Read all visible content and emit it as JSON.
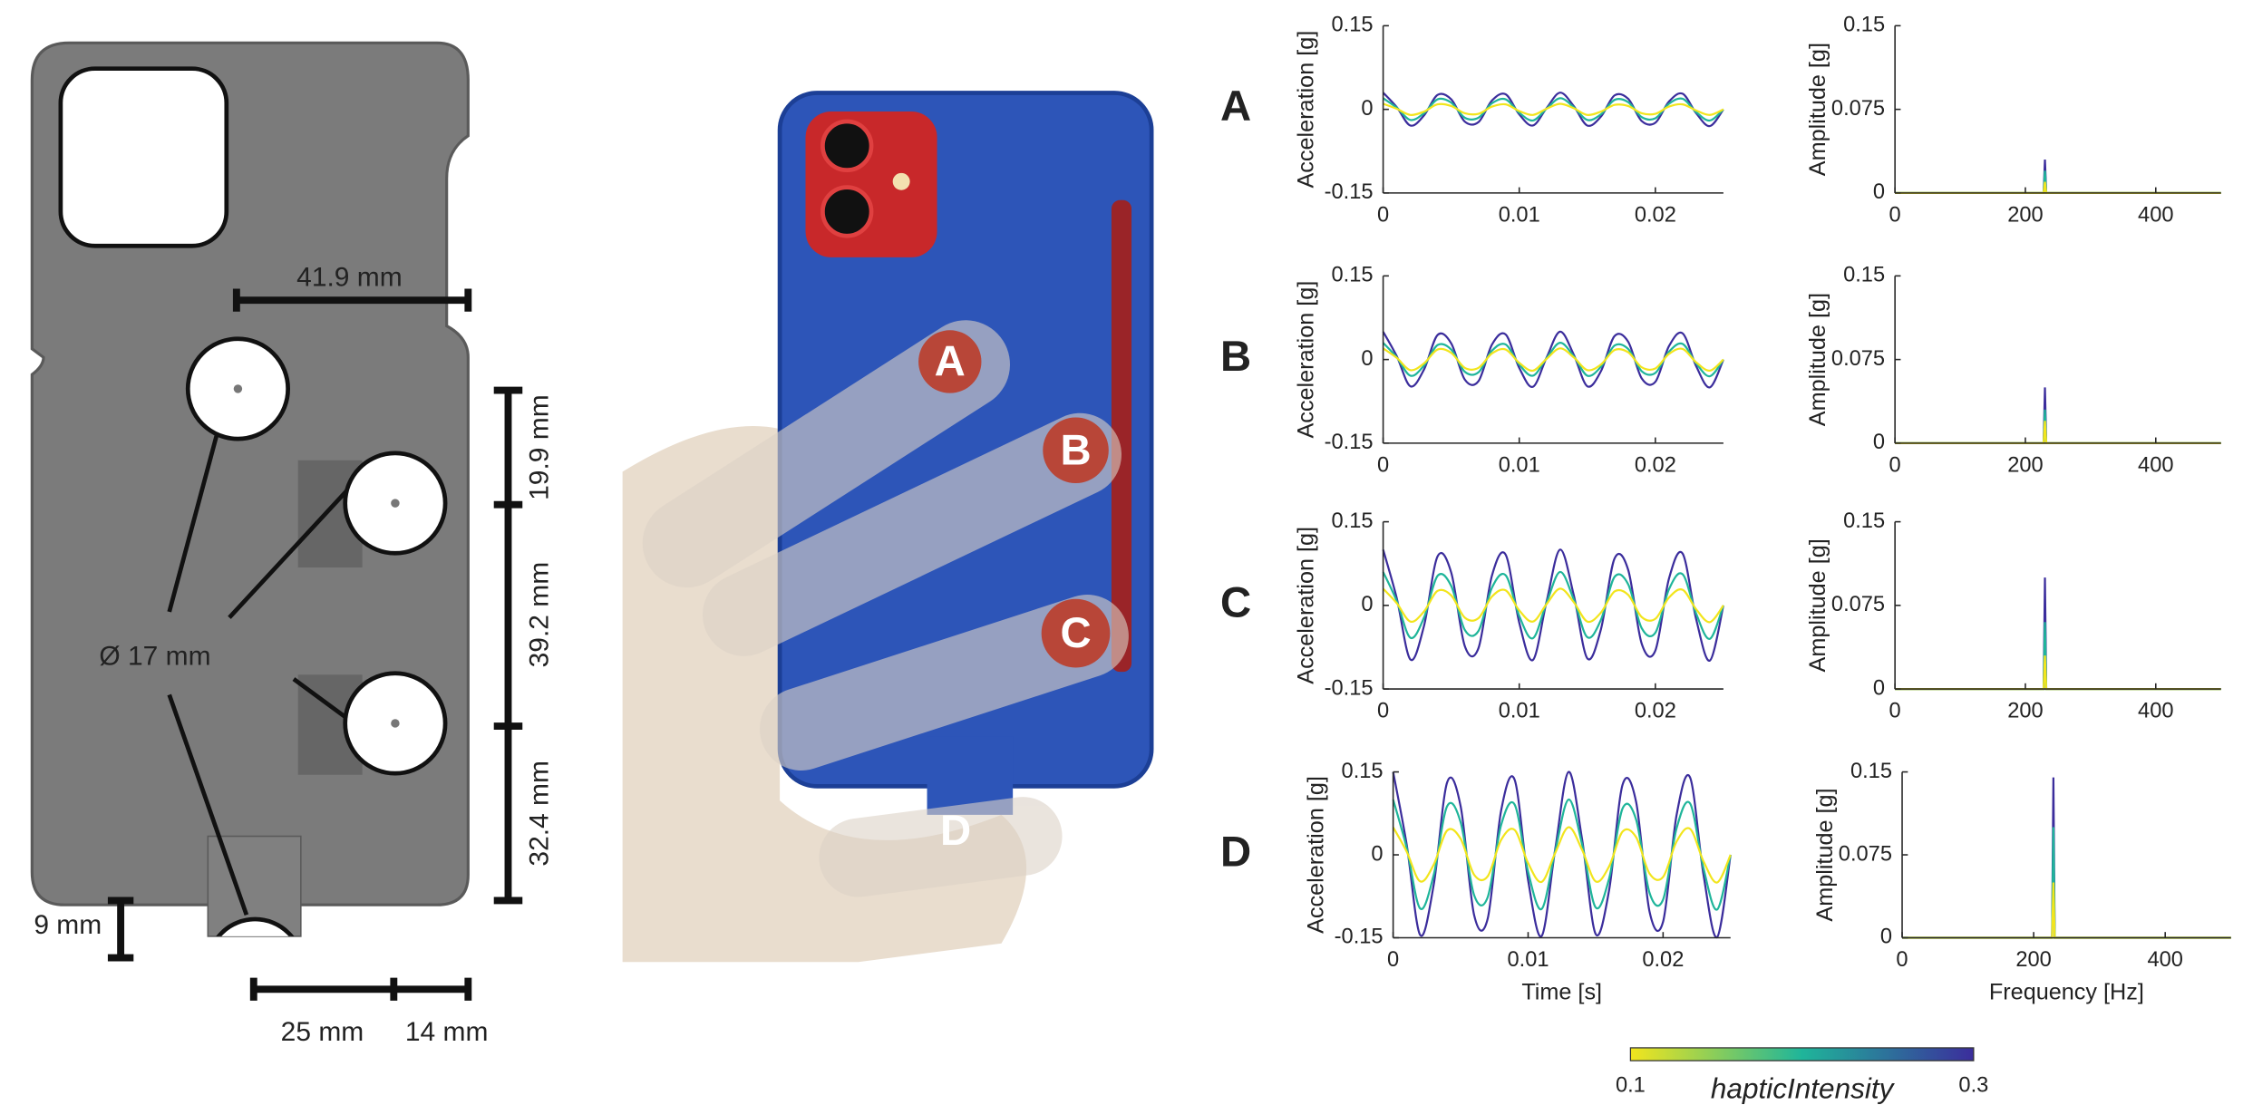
{
  "diagram": {
    "dimensions": [
      "41.9 mm",
      "19.9 mm",
      "39.2 mm",
      "32.4 mm",
      "9 mm",
      "25 mm",
      "14 mm"
    ],
    "diameter": "Ø 17 mm"
  },
  "photo": {
    "labels": [
      "A",
      "B",
      "C",
      "D"
    ]
  },
  "colorbar": {
    "label": "hapticIntensity",
    "min": 0.1,
    "max": 0.3,
    "colors": [
      "#f2e51d",
      "#1fb59a",
      "#3b2d9c"
    ]
  },
  "chart_data": [
    {
      "type": "line",
      "panel": "A",
      "ylabel": "Acceleration [g]",
      "x": [
        0,
        0.001,
        0.002,
        0.003,
        0.004,
        0.005,
        0.006,
        0.007,
        0.008,
        0.009,
        0.01,
        0.011,
        0.012,
        0.013,
        0.014,
        0.015,
        0.016,
        0.017,
        0.018,
        0.019,
        0.02,
        0.021,
        0.022,
        0.023,
        0.024,
        0.025
      ],
      "xlim": [
        0,
        0.025
      ],
      "xticks": [
        0,
        0.01,
        0.02
      ],
      "ylim": [
        -0.15,
        0.15
      ],
      "yticks": [
        -0.15,
        0,
        0.15
      ],
      "series": [
        {
          "color": "#f2e51d",
          "values": [
            0.01,
            0.001,
            -0.01,
            -0.004,
            0.009,
            0.006,
            -0.007,
            -0.008,
            0.005,
            0.009,
            -0.003,
            -0.01,
            0.001,
            0.01,
            0.002,
            -0.01,
            -0.004,
            0.008,
            0.006,
            -0.007,
            -0.008,
            0.005,
            0.009,
            -0.002,
            -0.01,
            0
          ]
        },
        {
          "color": "#1fb59a",
          "values": [
            0.02,
            0.003,
            -0.019,
            -0.007,
            0.018,
            0.012,
            -0.015,
            -0.015,
            0.011,
            0.018,
            -0.006,
            -0.02,
            0.001,
            0.02,
            0.004,
            -0.019,
            -0.009,
            0.017,
            0.013,
            -0.014,
            -0.016,
            0.01,
            0.019,
            -0.005,
            -0.02,
            0
          ]
        },
        {
          "color": "#3b2d9c",
          "values": [
            0.03,
            0.004,
            -0.029,
            -0.011,
            0.026,
            0.018,
            -0.022,
            -0.023,
            0.016,
            0.027,
            -0.009,
            -0.029,
            0.002,
            0.03,
            0.006,
            -0.029,
            -0.013,
            0.025,
            0.019,
            -0.021,
            -0.024,
            0.014,
            0.028,
            -0.007,
            -0.03,
            0
          ]
        }
      ]
    },
    {
      "type": "line",
      "ylabel": "Amplitude [g]",
      "x": [
        0,
        228,
        230,
        232,
        500
      ],
      "xlim": [
        0,
        500
      ],
      "xticks": [
        0,
        200,
        400
      ],
      "ylim": [
        0,
        0.15
      ],
      "yticks": [
        0,
        0.075,
        0.15
      ],
      "series": [
        {
          "color": "#f2e51d",
          "values": [
            0,
            0,
            0.01,
            0,
            0
          ]
        },
        {
          "color": "#1fb59a",
          "values": [
            0,
            0,
            0.02,
            0,
            0
          ]
        },
        {
          "color": "#3b2d9c",
          "values": [
            0,
            0,
            0.03,
            0,
            0
          ]
        }
      ]
    },
    {
      "type": "line",
      "panel": "B",
      "ylabel": "Acceleration [g]",
      "x": [
        0,
        0.001,
        0.002,
        0.003,
        0.004,
        0.005,
        0.006,
        0.007,
        0.008,
        0.009,
        0.01,
        0.011,
        0.012,
        0.013,
        0.014,
        0.015,
        0.016,
        0.017,
        0.018,
        0.019,
        0.02,
        0.021,
        0.022,
        0.023,
        0.024,
        0.025
      ],
      "xlim": [
        0,
        0.025
      ],
      "xticks": [
        0,
        0.01,
        0.02
      ],
      "ylim": [
        -0.15,
        0.15
      ],
      "yticks": [
        -0.15,
        0,
        0.15
      ],
      "series": [
        {
          "color": "#f2e51d",
          "values": [
            0.02,
            0.003,
            -0.019,
            -0.007,
            0.018,
            0.012,
            -0.015,
            -0.015,
            0.011,
            0.018,
            -0.006,
            -0.02,
            0.001,
            0.02,
            0.004,
            -0.019,
            -0.009,
            0.017,
            0.013,
            -0.014,
            -0.016,
            0.01,
            0.019,
            -0.005,
            -0.02,
            0
          ]
        },
        {
          "color": "#1fb59a",
          "values": [
            0.03,
            0.004,
            -0.029,
            -0.011,
            0.026,
            0.018,
            -0.022,
            -0.023,
            0.016,
            0.027,
            -0.009,
            -0.029,
            0.002,
            0.03,
            0.006,
            -0.029,
            -0.013,
            0.025,
            0.019,
            -0.021,
            -0.024,
            0.014,
            0.028,
            -0.007,
            -0.03,
            0
          ]
        },
        {
          "color": "#3b2d9c",
          "values": [
            0.05,
            0.006,
            -0.048,
            -0.018,
            0.044,
            0.029,
            -0.036,
            -0.039,
            0.027,
            0.045,
            -0.015,
            -0.049,
            0.003,
            0.05,
            0.009,
            -0.048,
            -0.021,
            0.042,
            0.032,
            -0.034,
            -0.04,
            0.024,
            0.047,
            -0.012,
            -0.05,
            0
          ]
        }
      ]
    },
    {
      "type": "line",
      "ylabel": "Amplitude [g]",
      "x": [
        0,
        228,
        230,
        232,
        500
      ],
      "xlim": [
        0,
        500
      ],
      "xticks": [
        0,
        200,
        400
      ],
      "ylim": [
        0,
        0.15
      ],
      "yticks": [
        0,
        0.075,
        0.15
      ],
      "series": [
        {
          "color": "#f2e51d",
          "values": [
            0,
            0,
            0.02,
            0,
            0
          ]
        },
        {
          "color": "#1fb59a",
          "values": [
            0,
            0,
            0.03,
            0,
            0
          ]
        },
        {
          "color": "#3b2d9c",
          "values": [
            0,
            0,
            0.05,
            0,
            0
          ]
        }
      ]
    },
    {
      "type": "line",
      "panel": "C",
      "ylabel": "Acceleration [g]",
      "x": [
        0,
        0.001,
        0.002,
        0.003,
        0.004,
        0.005,
        0.006,
        0.007,
        0.008,
        0.009,
        0.01,
        0.011,
        0.012,
        0.013,
        0.014,
        0.015,
        0.016,
        0.017,
        0.018,
        0.019,
        0.02,
        0.021,
        0.022,
        0.023,
        0.024,
        0.025
      ],
      "xlim": [
        0,
        0.025
      ],
      "xticks": [
        0,
        0.01,
        0.02
      ],
      "ylim": [
        -0.15,
        0.15
      ],
      "yticks": [
        -0.15,
        0,
        0.15
      ],
      "series": [
        {
          "color": "#f2e51d",
          "values": [
            0.03,
            0.004,
            -0.029,
            -0.011,
            0.026,
            0.018,
            -0.022,
            -0.023,
            0.016,
            0.027,
            -0.009,
            -0.029,
            0.002,
            0.03,
            0.006,
            -0.029,
            -0.013,
            0.025,
            0.019,
            -0.021,
            -0.024,
            0.014,
            0.028,
            -0.007,
            -0.03,
            0
          ]
        },
        {
          "color": "#1fb59a",
          "values": [
            0.06,
            0.008,
            -0.058,
            -0.022,
            0.053,
            0.035,
            -0.044,
            -0.046,
            0.032,
            0.054,
            -0.019,
            -0.059,
            0.004,
            0.06,
            0.011,
            -0.057,
            -0.026,
            0.051,
            0.038,
            -0.041,
            -0.049,
            0.029,
            0.056,
            -0.015,
            -0.06,
            0
          ]
        },
        {
          "color": "#3b2d9c",
          "values": [
            0.1,
            0.013,
            -0.097,
            -0.037,
            0.088,
            0.059,
            -0.073,
            -0.077,
            0.054,
            0.091,
            -0.031,
            -0.098,
            0.006,
            0.1,
            0.019,
            -0.095,
            -0.043,
            0.084,
            0.064,
            -0.069,
            -0.081,
            0.048,
            0.093,
            -0.025,
            -0.099,
            0
          ]
        }
      ]
    },
    {
      "type": "line",
      "ylabel": "Amplitude [g]",
      "x": [
        0,
        228,
        230,
        232,
        500
      ],
      "xlim": [
        0,
        500
      ],
      "xticks": [
        0,
        200,
        400
      ],
      "ylim": [
        0,
        0.15
      ],
      "yticks": [
        0,
        0.075,
        0.15
      ],
      "series": [
        {
          "color": "#f2e51d",
          "values": [
            0,
            0,
            0.03,
            0,
            0
          ]
        },
        {
          "color": "#1fb59a",
          "values": [
            0,
            0,
            0.06,
            0,
            0
          ]
        },
        {
          "color": "#3b2d9c",
          "values": [
            0,
            0,
            0.1,
            0,
            0
          ]
        }
      ]
    },
    {
      "type": "line",
      "panel": "D",
      "ylabel": "Acceleration [g]",
      "xlabel": "Time [s]",
      "x": [
        0,
        0.001,
        0.002,
        0.003,
        0.004,
        0.005,
        0.006,
        0.007,
        0.008,
        0.009,
        0.01,
        0.011,
        0.012,
        0.013,
        0.014,
        0.015,
        0.016,
        0.017,
        0.018,
        0.019,
        0.02,
        0.021,
        0.022,
        0.023,
        0.024,
        0.025
      ],
      "xlim": [
        0,
        0.025
      ],
      "xticks": [
        0,
        0.01,
        0.02
      ],
      "ylim": [
        -0.15,
        0.15
      ],
      "yticks": [
        -0.15,
        0,
        0.15
      ],
      "series": [
        {
          "color": "#f2e51d",
          "values": [
            0.05,
            0.006,
            -0.048,
            -0.018,
            0.044,
            0.029,
            -0.036,
            -0.039,
            0.027,
            0.045,
            -0.015,
            -0.049,
            0.003,
            0.05,
            0.009,
            -0.048,
            -0.021,
            0.042,
            0.032,
            -0.034,
            -0.04,
            0.024,
            0.047,
            -0.012,
            -0.05,
            0
          ]
        },
        {
          "color": "#1fb59a",
          "values": [
            0.1,
            0.013,
            -0.097,
            -0.037,
            0.088,
            0.059,
            -0.073,
            -0.077,
            0.054,
            0.091,
            -0.031,
            -0.098,
            0.006,
            0.1,
            0.019,
            -0.095,
            -0.043,
            0.084,
            0.064,
            -0.069,
            -0.081,
            0.048,
            0.093,
            -0.025,
            -0.099,
            0
          ]
        },
        {
          "color": "#3b2d9c",
          "values": [
            0.15,
            0.019,
            -0.145,
            -0.055,
            0.131,
            0.088,
            -0.109,
            -0.116,
            0.08,
            0.136,
            -0.046,
            -0.147,
            0.009,
            0.15,
            0.028,
            -0.143,
            -0.064,
            0.127,
            0.096,
            -0.103,
            -0.121,
            0.072,
            0.14,
            -0.037,
            -0.149,
            0
          ]
        }
      ]
    },
    {
      "type": "line",
      "ylabel": "Amplitude [g]",
      "xlabel": "Frequency [Hz]",
      "x": [
        0,
        228,
        230,
        232,
        500
      ],
      "xlim": [
        0,
        500
      ],
      "xticks": [
        0,
        200,
        400
      ],
      "ylim": [
        0,
        0.15
      ],
      "yticks": [
        0,
        0.075,
        0.15
      ],
      "series": [
        {
          "color": "#f2e51d",
          "values": [
            0,
            0,
            0.05,
            0,
            0
          ]
        },
        {
          "color": "#1fb59a",
          "values": [
            0,
            0,
            0.1,
            0,
            0
          ]
        },
        {
          "color": "#3b2d9c",
          "values": [
            0,
            0,
            0.145,
            0,
            0
          ]
        }
      ]
    }
  ]
}
